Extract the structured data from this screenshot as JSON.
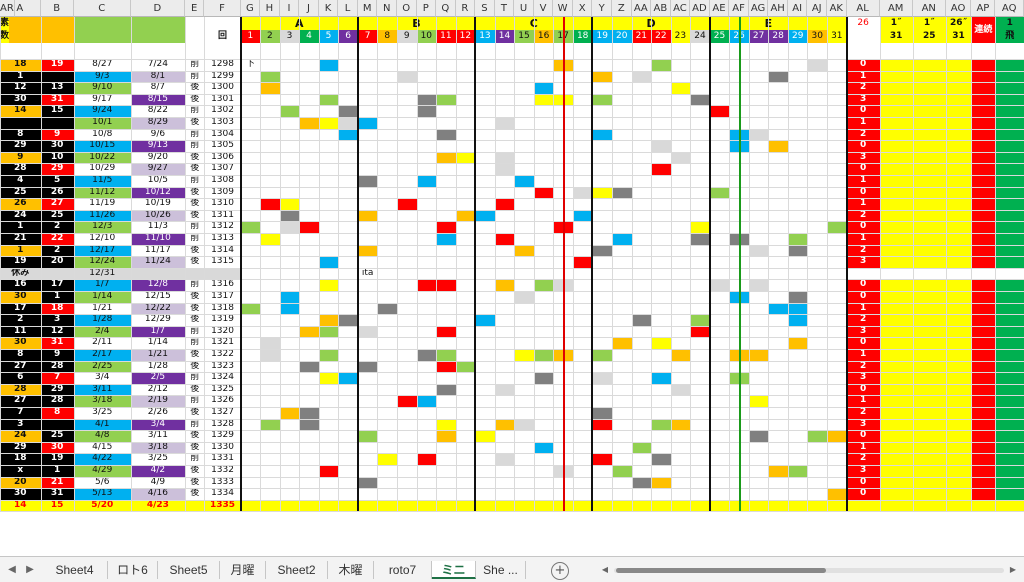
{
  "colors": {
    "yellow": "#ffff00",
    "orange": "#ffc000",
    "red": "#ff0000",
    "blue": "#00b0f0",
    "green": "#92d050",
    "gray": "#808080",
    "lightgray": "#d9d9d9",
    "purple": "#7030a0",
    "black": "#000000",
    "lavender": "#ccc0da",
    "darkgreen": "#00b050",
    "darkred": "#c00000",
    "pink": "#f2b8b8"
  },
  "sheet": {
    "columns": [
      "A",
      "B",
      "C",
      "D",
      "E",
      "F",
      "G",
      "H",
      "I",
      "J",
      "K",
      "L",
      "M",
      "N",
      "O",
      "P",
      "Q",
      "R",
      "S",
      "T",
      "U",
      "V",
      "W",
      "X",
      "Y",
      "Z",
      "AA",
      "AB",
      "AC",
      "AD",
      "AE",
      "AF",
      "AG",
      "AH",
      "AI",
      "AJ",
      "AK",
      "AL",
      "AM",
      "AN",
      "AO",
      "AP",
      "AQ",
      "AR"
    ],
    "groups": [
      "A",
      "B",
      "C",
      "D",
      "E"
    ],
    "header": {
      "kai": "回",
      "al_num": "26",
      "am": [
        "1˝",
        "31"
      ],
      "an": [
        "1˝",
        "25"
      ],
      "ao": [
        "26˝",
        "31"
      ],
      "ap": "連続",
      "aq": [
        "1",
        "飛"
      ],
      "ar": [
        "素",
        "数"
      ],
      "num_row": [
        "1",
        "2",
        "3",
        "4",
        "5",
        "6",
        "7",
        "8",
        "9",
        "10",
        "11",
        "12",
        "13",
        "14",
        "15",
        "16",
        "17",
        "18",
        "19",
        "20",
        "21",
        "22",
        "23",
        "24",
        "25",
        "26",
        "27",
        "28",
        "29",
        "30",
        "31"
      ]
    },
    "rows": [
      {
        "a": "18",
        "b": "19",
        "c": "8/27",
        "d": "7/24",
        "e": "前",
        "f": "1298",
        "g": "下",
        "al": "0"
      },
      {
        "a": "1",
        "b": "",
        "c": "9/3",
        "d": "8/1",
        "e": "前",
        "f": "1299",
        "al": "1"
      },
      {
        "a": "12",
        "b": "13",
        "c": "9/10",
        "d": "8/7",
        "e": "後",
        "f": "1300",
        "al": "2"
      },
      {
        "a": "30",
        "b": "31",
        "c": "9/17",
        "d": "8/15",
        "e": "後",
        "f": "1301",
        "al": "3"
      },
      {
        "a": "14",
        "b": "15",
        "c": "9/24",
        "d": "8/22",
        "e": "前",
        "f": "1302",
        "al": "0"
      },
      {
        "a": "",
        "b": "",
        "c": "10/1",
        "d": "8/29",
        "e": "後",
        "f": "1303",
        "al": "1"
      },
      {
        "a": "8",
        "b": "9",
        "c": "10/8",
        "d": "9/6",
        "e": "前",
        "f": "1304",
        "al": "2"
      },
      {
        "a": "29",
        "b": "30",
        "c": "10/15",
        "d": "9/13",
        "e": "前",
        "f": "1305",
        "al": "0"
      },
      {
        "a": "9",
        "b": "10",
        "c": "10/22",
        "d": "9/20",
        "e": "後",
        "f": "1306",
        "al": "3"
      },
      {
        "a": "28",
        "b": "29",
        "c": "10/29",
        "d": "9/27",
        "e": "後",
        "f": "1307",
        "al": "0"
      },
      {
        "a": "4",
        "b": "5",
        "c": "11/5",
        "d": "10/5",
        "e": "前",
        "f": "1308",
        "al": "1"
      },
      {
        "a": "25",
        "b": "26",
        "c": "11/12",
        "d": "10/12",
        "e": "後",
        "f": "1309",
        "al": "0"
      },
      {
        "a": "26",
        "b": "27",
        "c": "11/19",
        "d": "10/19",
        "e": "後",
        "f": "1310",
        "al": "1"
      },
      {
        "a": "24",
        "b": "25",
        "c": "11/26",
        "d": "10/26",
        "e": "後",
        "f": "1311",
        "al": "2"
      },
      {
        "a": "1",
        "b": "2",
        "c": "12/3",
        "d": "11/3",
        "e": "前",
        "f": "1312",
        "al": "0"
      },
      {
        "a": "21",
        "b": "22",
        "c": "12/10",
        "d": "11/10",
        "e": "前",
        "f": "1313",
        "al": "1"
      },
      {
        "a": "1",
        "b": "2",
        "c": "12/17",
        "d": "11/17",
        "e": "後",
        "f": "1314",
        "al": "2"
      },
      {
        "a": "19",
        "b": "20",
        "c": "12/24",
        "d": "11/24",
        "e": "後",
        "f": "1315",
        "al": "3"
      },
      {
        "a": "休み",
        "b": "",
        "c": "12/31",
        "d": "",
        "e": "",
        "f": "",
        "al": "",
        "m": "ita"
      },
      {
        "a": "16",
        "b": "17",
        "c": "1/7",
        "d": "12/8",
        "e": "前",
        "f": "1316",
        "al": "0"
      },
      {
        "a": "30",
        "b": "1",
        "c": "1/14",
        "d": "12/15",
        "e": "後",
        "f": "1317",
        "al": "0"
      },
      {
        "a": "17",
        "b": "18",
        "c": "1/21",
        "d": "12/22",
        "e": "後",
        "f": "1318",
        "al": "1"
      },
      {
        "a": "2",
        "b": "3",
        "c": "1/28",
        "d": "12/29",
        "e": "後",
        "f": "1319",
        "al": "2"
      },
      {
        "a": "11",
        "b": "12",
        "c": "2/4",
        "d": "1/7",
        "e": "前",
        "f": "1320",
        "al": "3"
      },
      {
        "a": "30",
        "b": "31",
        "c": "2/11",
        "d": "1/14",
        "e": "前",
        "f": "1321",
        "al": "0"
      },
      {
        "a": "8",
        "b": "9",
        "c": "2/17",
        "d": "1/21",
        "e": "後",
        "f": "1322",
        "al": "1"
      },
      {
        "a": "27",
        "b": "28",
        "c": "2/25",
        "d": "1/28",
        "e": "後",
        "f": "1323",
        "al": "2"
      },
      {
        "a": "6",
        "b": "7",
        "c": "3/4",
        "d": "2/5",
        "e": "前",
        "f": "1324",
        "al": "3"
      },
      {
        "a": "28",
        "b": "29",
        "c": "3/11",
        "d": "2/12",
        "e": "後",
        "f": "1325",
        "al": "0"
      },
      {
        "a": "27",
        "b": "28",
        "c": "3/18",
        "d": "2/19",
        "e": "前",
        "f": "1326",
        "al": "1"
      },
      {
        "a": "7",
        "b": "8",
        "c": "3/25",
        "d": "2/26",
        "e": "後",
        "f": "1327",
        "al": "2"
      },
      {
        "a": "3",
        "b": "",
        "c": "4/1",
        "d": "3/4",
        "e": "前",
        "f": "1328",
        "al": "3"
      },
      {
        "a": "24",
        "b": "25",
        "c": "4/8",
        "d": "3/11",
        "e": "後",
        "f": "1329",
        "al": "0"
      },
      {
        "a": "29",
        "b": "30",
        "c": "4/15",
        "d": "3/18",
        "e": "後",
        "f": "1330",
        "al": "1"
      },
      {
        "a": "18",
        "b": "19",
        "c": "4/22",
        "d": "3/25",
        "e": "前",
        "f": "1331",
        "al": "2"
      },
      {
        "a": "x",
        "b": "1",
        "c": "4/29",
        "d": "4/2",
        "e": "後",
        "f": "1332",
        "al": "3"
      },
      {
        "a": "20",
        "b": "21",
        "c": "5/6",
        "d": "4/9",
        "e": "後",
        "f": "1333",
        "al": "0"
      },
      {
        "a": "30",
        "b": "31",
        "c": "5/13",
        "d": "4/16",
        "e": "後",
        "f": "1334",
        "al": "0"
      }
    ],
    "footer": {
      "a": "14",
      "b": "15",
      "c": "5/20",
      "d": "4/23",
      "f": "1335"
    }
  },
  "tabs": [
    {
      "label": "Sheet4"
    },
    {
      "label": "ロト6"
    },
    {
      "label": "Sheet5"
    },
    {
      "label": "月曜"
    },
    {
      "label": "Sheet2"
    },
    {
      "label": "木曜"
    },
    {
      "label": "roto7"
    },
    {
      "label": "ミニ",
      "active": true
    },
    {
      "label": "She ..."
    }
  ],
  "add_label": "+",
  "nav_next": "▶",
  "icons": [
    "next-sheet-icon",
    "add-sheet-icon",
    "scroll-left-icon",
    "scroll-right-icon"
  ]
}
